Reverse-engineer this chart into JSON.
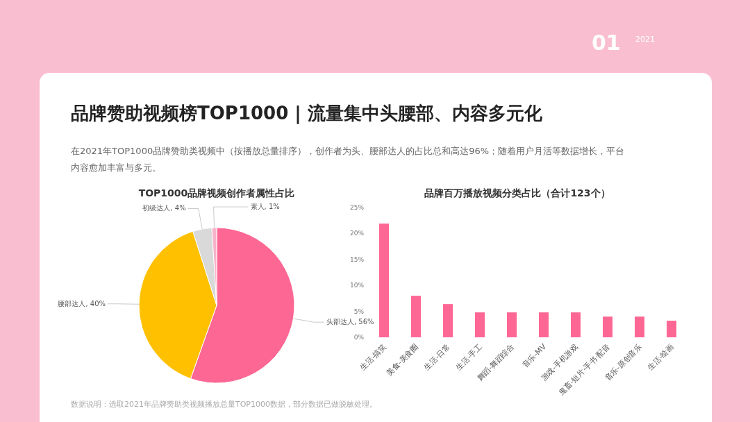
{
  "chart_data": [
    {
      "type": "other",
      "title": "品牌赞助视频榜TOP1000 | 流量集中头腰部、内容多元化",
      "subtitle": "在2021年TOP1000品牌赞助类视频中（按播放总量排序），创作者为头、腰部达人的占比总和高达96%；随着用户月活等数据增长，平台内容愈加丰富与多元。",
      "annotations": [
        "01",
        "2021",
        "数据说明：选取2021年品牌赞助类视频播放总量TOP1000数据，部分数据已做脱敏处理。"
      ]
    },
    {
      "type": "pie",
      "title": "TOP1000品牌视频创作者属性占比",
      "categories": [
        "头部达人",
        "腰部达人",
        "初级达人",
        "素人"
      ],
      "values": [
        56,
        40,
        4,
        1
      ],
      "value_labels": [
        "56%",
        "40%",
        "4%",
        "1%"
      ],
      "colors": [
        "#fd6794",
        "#ffc000",
        "#d9d9d9",
        "#f7b3c8"
      ]
    },
    {
      "type": "bar",
      "title": "品牌百万播放视频分类占比（合计123个）",
      "categories": [
        "生活-搞笑",
        "美食-美食圈",
        "生活-日常",
        "生活-手工",
        "舞蹈-舞蹈综合",
        "音乐-MV",
        "游戏-手机游戏",
        "鬼畜-短片·手书·配音",
        "音乐-原创音乐",
        "生活-绘画"
      ],
      "values": [
        21.9,
        8.0,
        6.4,
        4.8,
        4.8,
        4.8,
        4.8,
        4.0,
        4.0,
        3.2
      ],
      "color": "#fd6794",
      "ylim": [
        0,
        25
      ],
      "yticks": [
        {
          "value": 0,
          "label": "0%"
        },
        {
          "value": 5,
          "label": "5%"
        },
        {
          "value": 10,
          "label": "10%"
        },
        {
          "value": 15,
          "label": "15%"
        },
        {
          "value": 20,
          "label": "20%"
        },
        {
          "value": 25,
          "label": "25%"
        }
      ]
    }
  ]
}
